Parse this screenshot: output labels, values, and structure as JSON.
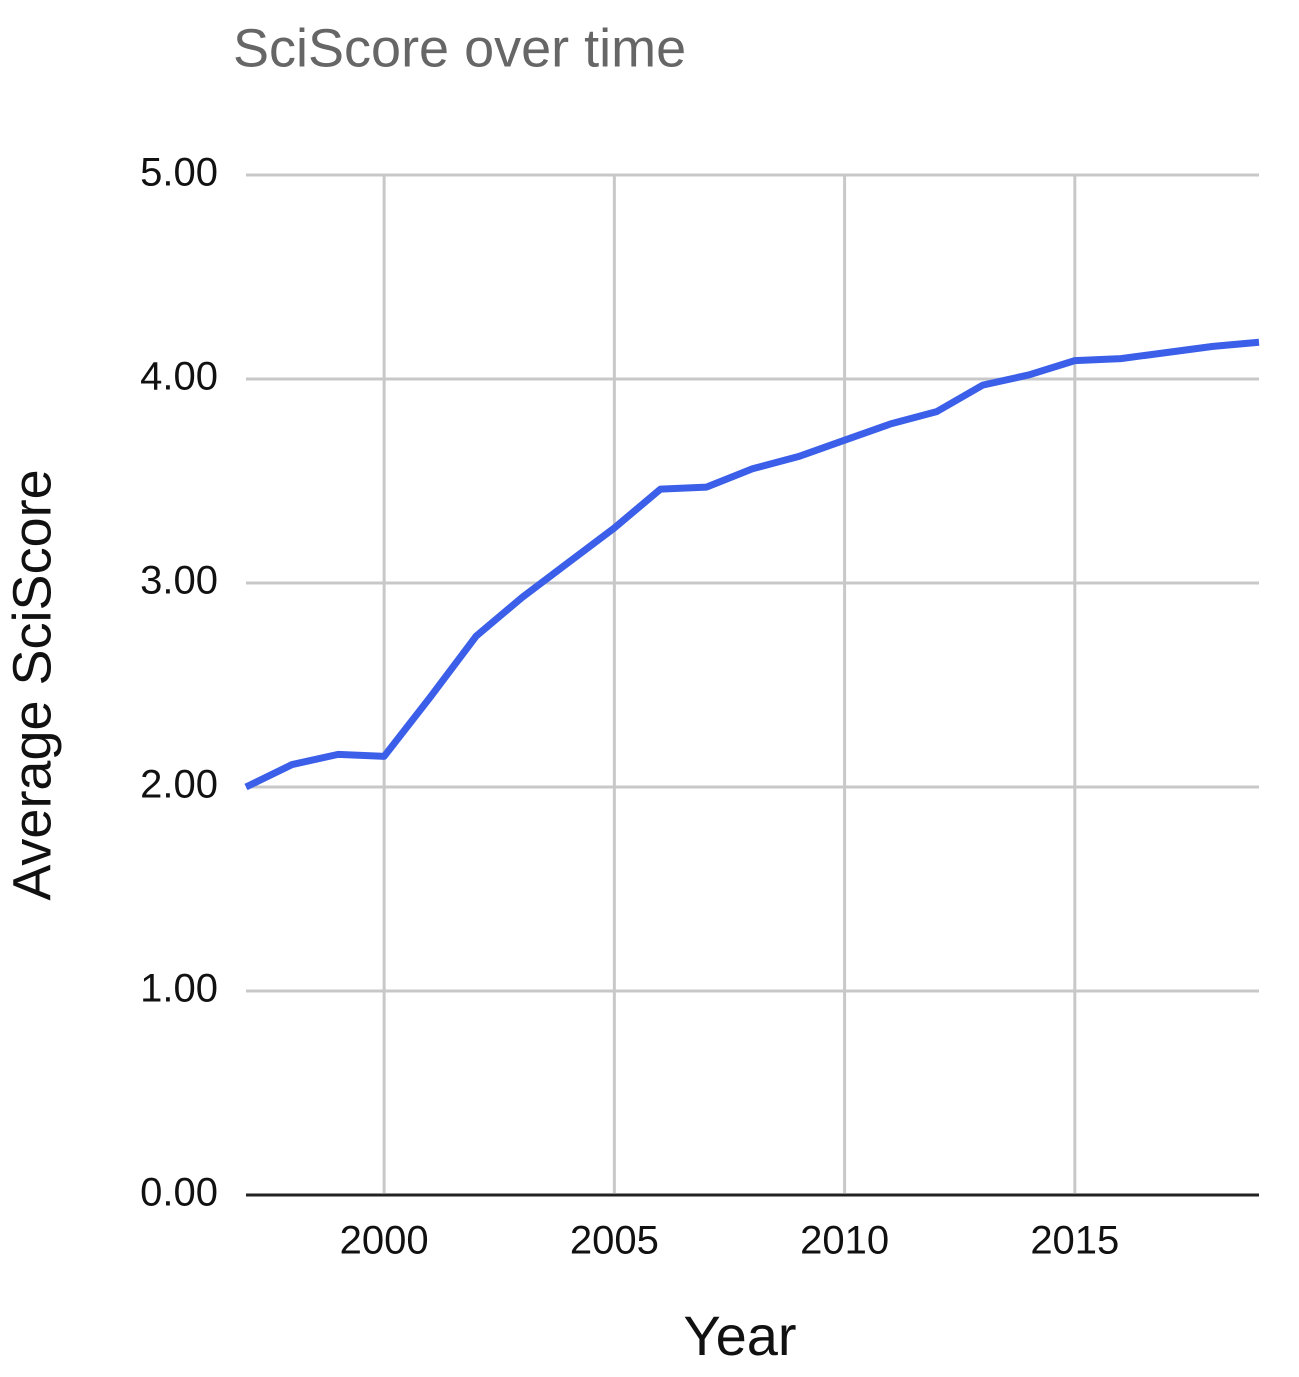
{
  "chart_data": {
    "type": "line",
    "title": "SciScore over time",
    "x_label": "Year",
    "y_label": "Average SciScore",
    "x": [
      1997,
      1998,
      1999,
      2000,
      2001,
      2002,
      2003,
      2004,
      2005,
      2006,
      2007,
      2008,
      2009,
      2010,
      2011,
      2012,
      2013,
      2014,
      2015,
      2016,
      2017,
      2018,
      2019
    ],
    "series": [
      {
        "name": "Average SciScore",
        "color": "#3b5fe8",
        "values": [
          2.0,
          2.11,
          2.16,
          2.15,
          2.44,
          2.74,
          2.93,
          3.1,
          3.27,
          3.46,
          3.47,
          3.56,
          3.62,
          3.7,
          3.78,
          3.84,
          3.97,
          4.02,
          4.09,
          4.1,
          4.13,
          4.16,
          4.18
        ]
      }
    ],
    "xlim": [
      1997,
      2019
    ],
    "xticks": [
      2000,
      2005,
      2010,
      2015
    ],
    "ylim": [
      0,
      5
    ],
    "yticks": [
      {
        "value": 0,
        "label": "0.00"
      },
      {
        "value": 1,
        "label": "1.00"
      },
      {
        "value": 2,
        "label": "2.00"
      },
      {
        "value": 3,
        "label": "3.00"
      },
      {
        "value": 4,
        "label": "4.00"
      },
      {
        "value": 5,
        "label": "5.00"
      }
    ],
    "grid": true
  }
}
